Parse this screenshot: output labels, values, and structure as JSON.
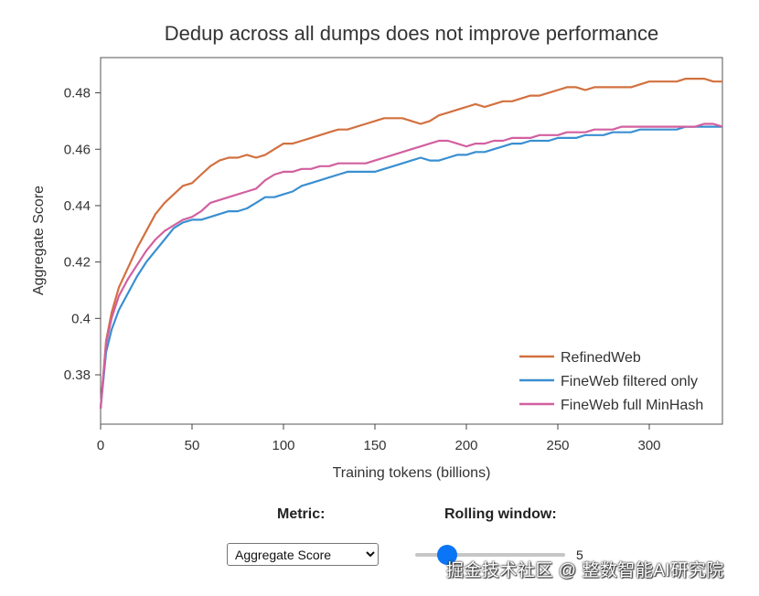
{
  "chart_data": {
    "type": "line",
    "title": "Dedup across all dumps does not improve performance",
    "xlabel": "Training tokens (billions)",
    "ylabel": "Aggregate Score",
    "xlim": [
      0,
      340
    ],
    "ylim": [
      0.3625,
      0.4925
    ],
    "xticks": [
      0,
      50,
      100,
      150,
      200,
      250,
      300
    ],
    "yticks": [
      0.38,
      0.4,
      0.42,
      0.44,
      0.46,
      0.48
    ],
    "ytick_labels": [
      "0.38",
      "0.4",
      "0.42",
      "0.44",
      "0.46",
      "0.48"
    ],
    "legend_position": "bottom-right",
    "series": [
      {
        "name": "RefinedWeb",
        "color": "#d2703f",
        "x": [
          0,
          3,
          6,
          10,
          15,
          20,
          25,
          30,
          35,
          40,
          45,
          50,
          55,
          60,
          65,
          70,
          75,
          80,
          85,
          90,
          95,
          100,
          105,
          110,
          115,
          120,
          125,
          130,
          135,
          140,
          145,
          150,
          155,
          160,
          165,
          170,
          175,
          180,
          185,
          190,
          195,
          200,
          205,
          210,
          215,
          220,
          225,
          230,
          235,
          240,
          245,
          250,
          255,
          260,
          265,
          270,
          275,
          280,
          285,
          290,
          295,
          300,
          305,
          310,
          315,
          320,
          325,
          330,
          335,
          340
        ],
        "y": [
          0.368,
          0.392,
          0.402,
          0.411,
          0.418,
          0.425,
          0.431,
          0.437,
          0.441,
          0.444,
          0.447,
          0.448,
          0.451,
          0.454,
          0.456,
          0.457,
          0.457,
          0.458,
          0.457,
          0.458,
          0.46,
          0.462,
          0.462,
          0.463,
          0.464,
          0.465,
          0.466,
          0.467,
          0.467,
          0.468,
          0.469,
          0.47,
          0.471,
          0.471,
          0.471,
          0.47,
          0.469,
          0.47,
          0.472,
          0.473,
          0.474,
          0.475,
          0.476,
          0.475,
          0.476,
          0.477,
          0.477,
          0.478,
          0.479,
          0.479,
          0.48,
          0.481,
          0.482,
          0.482,
          0.481,
          0.482,
          0.482,
          0.482,
          0.482,
          0.482,
          0.483,
          0.484,
          0.484,
          0.484,
          0.484,
          0.485,
          0.485,
          0.485,
          0.484,
          0.484
        ]
      },
      {
        "name": "FineWeb filtered only",
        "color": "#3a8fd1",
        "x": [
          0,
          3,
          6,
          10,
          15,
          20,
          25,
          30,
          35,
          40,
          45,
          50,
          55,
          60,
          65,
          70,
          75,
          80,
          85,
          90,
          95,
          100,
          105,
          110,
          115,
          120,
          125,
          130,
          135,
          140,
          145,
          150,
          155,
          160,
          165,
          170,
          175,
          180,
          185,
          190,
          195,
          200,
          205,
          210,
          215,
          220,
          225,
          230,
          235,
          240,
          245,
          250,
          255,
          260,
          265,
          270,
          275,
          280,
          285,
          290,
          295,
          300,
          305,
          310,
          315,
          320,
          325,
          330,
          335,
          340
        ],
        "y": [
          0.368,
          0.388,
          0.396,
          0.403,
          0.409,
          0.415,
          0.42,
          0.424,
          0.428,
          0.432,
          0.434,
          0.435,
          0.435,
          0.436,
          0.437,
          0.438,
          0.438,
          0.439,
          0.441,
          0.443,
          0.443,
          0.444,
          0.445,
          0.447,
          0.448,
          0.449,
          0.45,
          0.451,
          0.452,
          0.452,
          0.452,
          0.452,
          0.453,
          0.454,
          0.455,
          0.456,
          0.457,
          0.456,
          0.456,
          0.457,
          0.458,
          0.458,
          0.459,
          0.459,
          0.46,
          0.461,
          0.462,
          0.462,
          0.463,
          0.463,
          0.463,
          0.464,
          0.464,
          0.464,
          0.465,
          0.465,
          0.465,
          0.466,
          0.466,
          0.466,
          0.467,
          0.467,
          0.467,
          0.467,
          0.467,
          0.468,
          0.468,
          0.468,
          0.468,
          0.468
        ]
      },
      {
        "name": "FineWeb full MinHash",
        "color": "#d2609f",
        "x": [
          0,
          3,
          6,
          10,
          15,
          20,
          25,
          30,
          35,
          40,
          45,
          50,
          55,
          60,
          65,
          70,
          75,
          80,
          85,
          90,
          95,
          100,
          105,
          110,
          115,
          120,
          125,
          130,
          135,
          140,
          145,
          150,
          155,
          160,
          165,
          170,
          175,
          180,
          185,
          190,
          195,
          200,
          205,
          210,
          215,
          220,
          225,
          230,
          235,
          240,
          245,
          250,
          255,
          260,
          265,
          270,
          275,
          280,
          285,
          290,
          295,
          300,
          305,
          310,
          315,
          320,
          325,
          330,
          335,
          340
        ],
        "y": [
          0.368,
          0.391,
          0.4,
          0.408,
          0.414,
          0.419,
          0.424,
          0.428,
          0.431,
          0.433,
          0.435,
          0.436,
          0.438,
          0.441,
          0.442,
          0.443,
          0.444,
          0.445,
          0.446,
          0.449,
          0.451,
          0.452,
          0.452,
          0.453,
          0.453,
          0.454,
          0.454,
          0.455,
          0.455,
          0.455,
          0.455,
          0.456,
          0.457,
          0.458,
          0.459,
          0.46,
          0.461,
          0.462,
          0.463,
          0.463,
          0.462,
          0.461,
          0.462,
          0.462,
          0.463,
          0.463,
          0.464,
          0.464,
          0.464,
          0.465,
          0.465,
          0.465,
          0.466,
          0.466,
          0.466,
          0.467,
          0.467,
          0.467,
          0.468,
          0.468,
          0.468,
          0.468,
          0.468,
          0.468,
          0.468,
          0.468,
          0.468,
          0.469,
          0.469,
          0.468
        ]
      }
    ]
  },
  "controls": {
    "metric_label": "Metric:",
    "metric_selected": "Aggregate Score",
    "window_label": "Rolling window:",
    "window_value": 5,
    "window_min": 0,
    "window_max": 30
  },
  "watermark": "掘金技术社区 @ 整数智能AI研究院"
}
